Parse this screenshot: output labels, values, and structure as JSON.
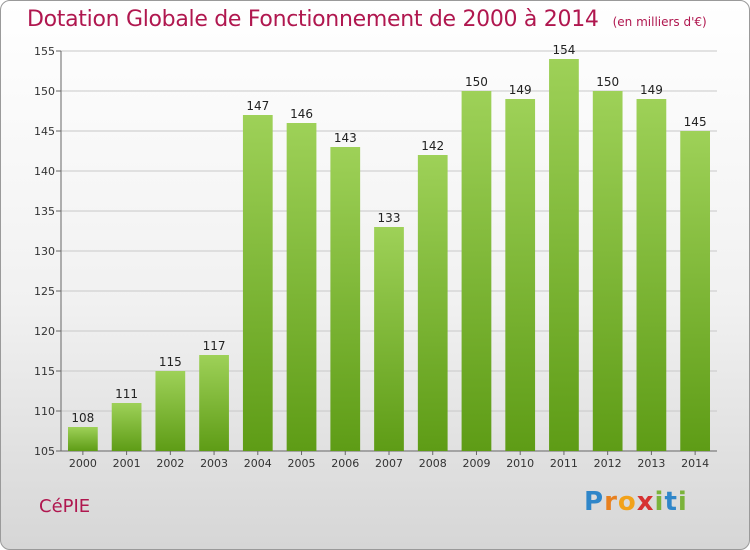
{
  "title": "Dotation Globale de Fonctionnement de 2000 à 2014",
  "unit_note": "(en milliers d'€)",
  "commune": "CéPIE",
  "logo": [
    "P",
    "r",
    "o",
    "x",
    "i",
    "t",
    "i"
  ],
  "colors": {
    "bar_top": "#9ed158",
    "bar_bottom": "#5e9c16",
    "title": "#b0174f",
    "grid": "#c8c8c8"
  },
  "chart_data": {
    "type": "bar",
    "title": "Dotation Globale de Fonctionnement de 2000 à 2014",
    "xlabel": "",
    "ylabel": "",
    "categories": [
      "2000",
      "2001",
      "2002",
      "2003",
      "2004",
      "2005",
      "2006",
      "2007",
      "2008",
      "2009",
      "2010",
      "2011",
      "2012",
      "2013",
      "2014"
    ],
    "values": [
      108,
      111,
      115,
      117,
      147,
      146,
      143,
      133,
      142,
      150,
      149,
      154,
      150,
      149,
      145
    ],
    "ylim": [
      105,
      155
    ],
    "yticks": [
      105,
      110,
      115,
      120,
      125,
      130,
      135,
      140,
      145,
      150,
      155
    ],
    "grid": true
  }
}
